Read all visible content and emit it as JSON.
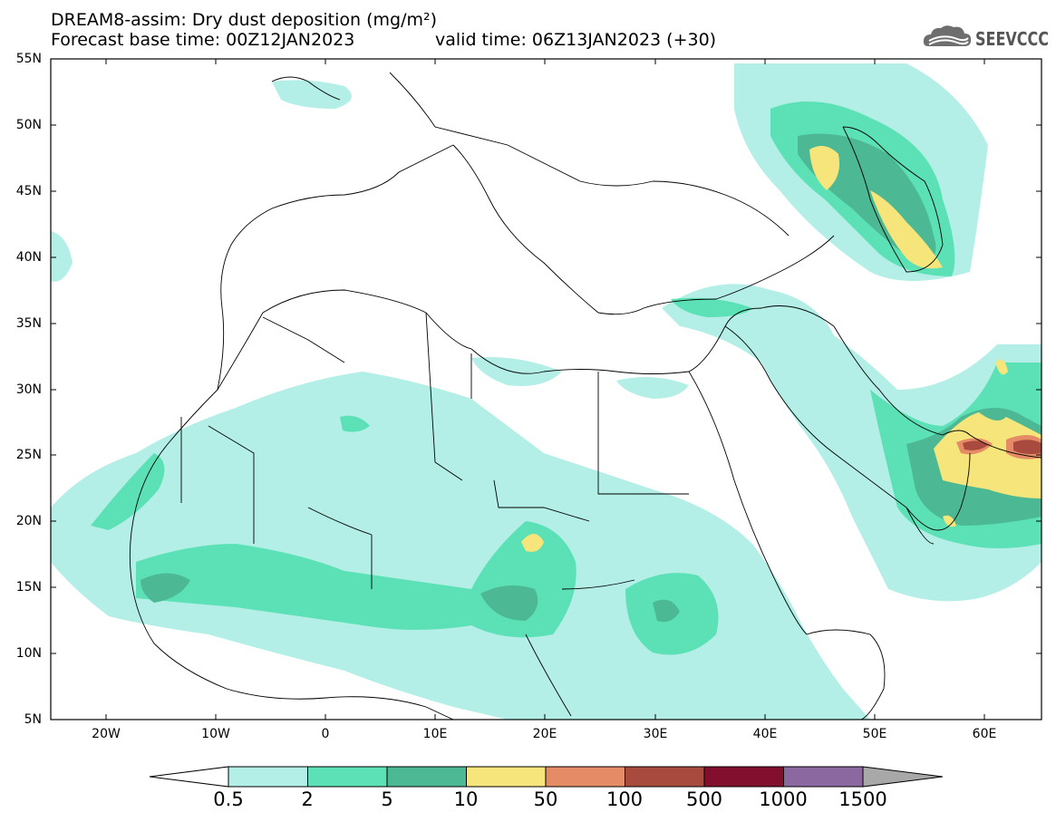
{
  "title": {
    "line1": "DREAM8-assim: Dry dust deposition (mg/m²)",
    "line2": "Forecast base time: 00Z12JAN2023",
    "valid": "valid time: 06Z13JAN2023 (+30)"
  },
  "logo": {
    "text": "SEEVCCC",
    "icon": "cloud-icon"
  },
  "map": {
    "lat_labels": [
      "55N",
      "50N",
      "45N",
      "40N",
      "35N",
      "30N",
      "25N",
      "20N",
      "15N",
      "10N",
      "5N"
    ],
    "lon_labels": [
      "20W",
      "10W",
      "0",
      "10E",
      "20E",
      "30E",
      "40E",
      "50E",
      "60E"
    ]
  },
  "colorbar": {
    "labels": [
      "0.5",
      "2",
      "5",
      "10",
      "50",
      "100",
      "500",
      "1000",
      "1500"
    ],
    "colors": [
      "#b3efe6",
      "#5ce1b6",
      "#4db894",
      "#f5e57a",
      "#e58c66",
      "#a84a3e",
      "#820f2e",
      "#8b68a0"
    ],
    "under_color": "#ffffff",
    "over_color": "#a8a8a8"
  }
}
